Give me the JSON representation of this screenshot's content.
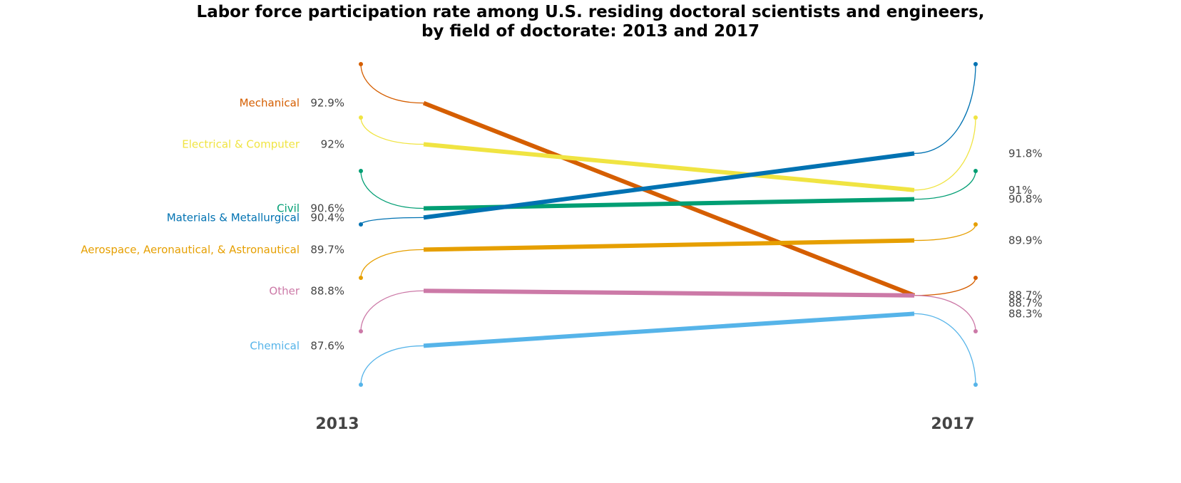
{
  "chart_data": {
    "type": "line",
    "subtype": "slope",
    "title": "Labor force participation rate among U.S. residing doctoral scientists and engineers,",
    "subtitle": "by field of doctorate: 2013 and 2017",
    "x": [
      "2013",
      "2017"
    ],
    "value_suffix": "%",
    "series": [
      {
        "name": "Mechanical",
        "color": "#d55e00",
        "values": [
          92.9,
          88.7
        ],
        "labels": [
          "92.9%",
          "88.7%"
        ]
      },
      {
        "name": "Electrical & Computer",
        "color": "#f0e442",
        "values": [
          92.0,
          91.0
        ],
        "labels": [
          "92%",
          "91%"
        ]
      },
      {
        "name": "Civil",
        "color": "#009e73",
        "values": [
          90.6,
          90.8
        ],
        "labels": [
          "90.6%",
          "90.8%"
        ]
      },
      {
        "name": "Materials & Metallurgical",
        "color": "#0072b2",
        "values": [
          90.4,
          91.8
        ],
        "labels": [
          "90.4%",
          "91.8%"
        ]
      },
      {
        "name": "Aerospace, Aeronautical, & Astronautical",
        "color": "#e69f00",
        "values": [
          89.7,
          89.9
        ],
        "labels": [
          "89.7%",
          "89.9%"
        ]
      },
      {
        "name": "Other",
        "color": "#cc79a7",
        "values": [
          88.8,
          88.7
        ],
        "labels": [
          "88.8%",
          "88.7%"
        ]
      },
      {
        "name": "Chemical",
        "color": "#56b4e9",
        "values": [
          87.6,
          88.3
        ],
        "labels": [
          "87.6%",
          "88.3%"
        ]
      }
    ],
    "legend": "none",
    "grid": false
  }
}
